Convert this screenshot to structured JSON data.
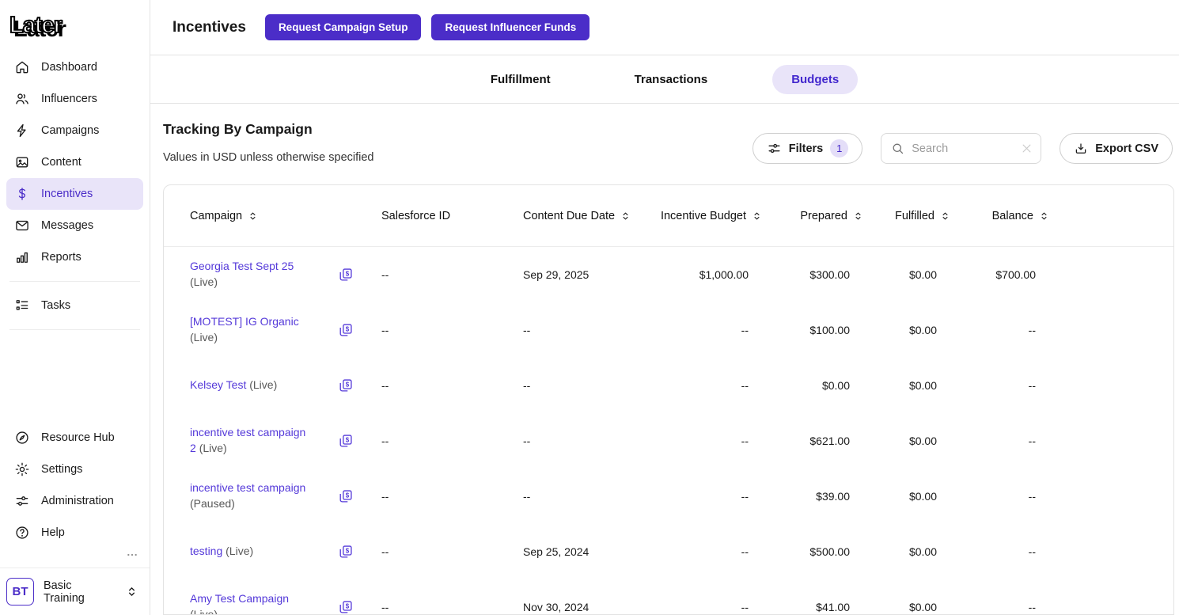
{
  "brand": {
    "logo_text": "Later"
  },
  "colors": {
    "accent_purple": "#4B2DC8",
    "link_purple": "#5439D9",
    "active_pill_bg": "#E9E4F9",
    "badge_bg": "#E4DEF8"
  },
  "sidebar": {
    "primary": [
      {
        "id": "dashboard",
        "label": "Dashboard",
        "icon": "home"
      },
      {
        "id": "influencers",
        "label": "Influencers",
        "icon": "people"
      },
      {
        "id": "campaigns",
        "label": "Campaigns",
        "icon": "lightning"
      },
      {
        "id": "content",
        "label": "Content",
        "icon": "image"
      },
      {
        "id": "incentives",
        "label": "Incentives",
        "icon": "dollar",
        "active": true
      },
      {
        "id": "messages",
        "label": "Messages",
        "icon": "envelope"
      },
      {
        "id": "reports",
        "label": "Reports",
        "icon": "bar-chart"
      }
    ],
    "secondary": [
      {
        "id": "tasks",
        "label": "Tasks",
        "icon": "checklist"
      }
    ],
    "utility": [
      {
        "id": "resource-hub",
        "label": "Resource Hub",
        "icon": "compass"
      },
      {
        "id": "settings",
        "label": "Settings",
        "icon": "gear"
      },
      {
        "id": "administration",
        "label": "Administration",
        "icon": "sliders"
      },
      {
        "id": "help",
        "label": "Help",
        "icon": "question-circle"
      }
    ],
    "workspace": {
      "initials": "BT",
      "name": "Basic Training"
    }
  },
  "header": {
    "title": "Incentives",
    "actions": [
      {
        "label": "Request Campaign Setup"
      },
      {
        "label": "Request Influencer Funds"
      }
    ]
  },
  "tabs": [
    {
      "label": "Fulfillment"
    },
    {
      "label": "Transactions"
    },
    {
      "label": "Budgets",
      "active": true
    }
  ],
  "section": {
    "title": "Tracking By Campaign",
    "subtitle": "Values in USD unless otherwise specified"
  },
  "toolbar": {
    "filters_label": "Filters",
    "filters_count": "1",
    "search_placeholder": "Search",
    "search_value": "",
    "export_label": "Export CSV"
  },
  "table": {
    "columns": [
      {
        "id": "campaign",
        "label": "Campaign",
        "sortable": true,
        "align": "left"
      },
      {
        "id": "salesforce_id",
        "label": "Salesforce ID",
        "sortable": false,
        "align": "left"
      },
      {
        "id": "content_due_date",
        "label": "Content Due Date",
        "sortable": true,
        "align": "left"
      },
      {
        "id": "incentive_budget",
        "label": "Incentive Budget",
        "sortable": true,
        "align": "right"
      },
      {
        "id": "prepared",
        "label": "Prepared",
        "sortable": true,
        "align": "right"
      },
      {
        "id": "fulfilled",
        "label": "Fulfilled",
        "sortable": true,
        "align": "right"
      },
      {
        "id": "balance",
        "label": "Balance",
        "sortable": true,
        "align": "right"
      }
    ],
    "rows": [
      {
        "campaign": "Georgia Test Sept 25",
        "status": "(Live)",
        "salesforce_id": "--",
        "content_due_date": "Sep 29, 2025",
        "incentive_budget": "$1,000.00",
        "prepared": "$300.00",
        "fulfilled": "$0.00",
        "balance": "$700.00"
      },
      {
        "campaign": "[MOTEST] IG Organic",
        "status": "(Live)",
        "salesforce_id": "--",
        "content_due_date": "--",
        "incentive_budget": "--",
        "prepared": "$100.00",
        "fulfilled": "$0.00",
        "balance": "--"
      },
      {
        "campaign": "Kelsey Test",
        "status": "(Live)",
        "salesforce_id": "--",
        "content_due_date": "--",
        "incentive_budget": "--",
        "prepared": "$0.00",
        "fulfilled": "$0.00",
        "balance": "--"
      },
      {
        "campaign": "incentive test campaign 2",
        "status": "(Live)",
        "salesforce_id": "--",
        "content_due_date": "--",
        "incentive_budget": "--",
        "prepared": "$621.00",
        "fulfilled": "$0.00",
        "balance": "--"
      },
      {
        "campaign": "incentive test campaign",
        "status": "(Paused)",
        "salesforce_id": "--",
        "content_due_date": "--",
        "incentive_budget": "--",
        "prepared": "$39.00",
        "fulfilled": "$0.00",
        "balance": "--"
      },
      {
        "campaign": "testing",
        "status": "(Live)",
        "salesforce_id": "--",
        "content_due_date": "Sep 25, 2024",
        "incentive_budget": "--",
        "prepared": "$500.00",
        "fulfilled": "$0.00",
        "balance": "--"
      },
      {
        "campaign": "Amy Test Campaign",
        "status": "(Live)",
        "salesforce_id": "--",
        "content_due_date": "Nov 30, 2024",
        "incentive_budget": "--",
        "prepared": "$41.00",
        "fulfilled": "$0.00",
        "balance": "--"
      }
    ]
  }
}
